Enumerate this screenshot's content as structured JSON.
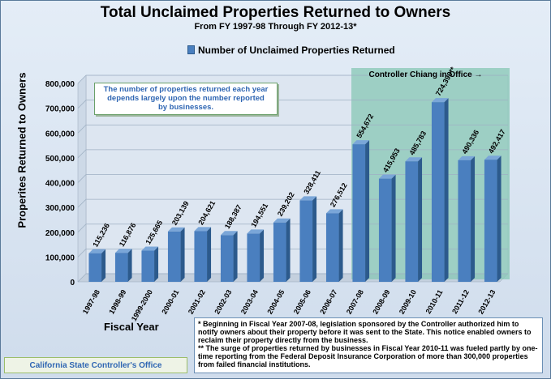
{
  "header": {
    "title": "Total Unclaimed Properties Returned to Owners",
    "subtitle": "From FY 1997-98 Through FY 2012-13*"
  },
  "legend": {
    "label": "Number of Unclaimed Properties Returned"
  },
  "annotations": {
    "note": [
      "The number of properties returned each year",
      "depends largely upon the number reported",
      "by businesses."
    ],
    "office_label": "Controller Chiang in Office →",
    "footnotes": [
      "* Beginning in Fiscal Year 2007-08, legislation sponsored by the Controller authorized him to notify owners about their property before it was sent to the State. This notice enabled owners to reclaim their property directly from the business.",
      "** The surge of properties returned by businesses in Fiscal Year 2010-11 was fueled partly by one-time reporting from the Federal Deposit Insurance Corporation of more than 300,000 properties from failed financial institutions."
    ],
    "source": "California State Controller's Office"
  },
  "colors": {
    "bar": "#4a7fbf",
    "bar_dark": "#2c5a8c",
    "highlight": "#87c7b4",
    "background": "#d8e3f0"
  },
  "chart_data": {
    "type": "bar",
    "title": "Total Unclaimed Properties Returned to Owners",
    "subtitle": "From FY 1997-98 Through FY 2012-13*",
    "xlabel": "Fiscal Year",
    "ylabel": "Properites Returned to Owners",
    "ylim": [
      0,
      800000
    ],
    "yticks": [
      0,
      100000,
      200000,
      300000,
      400000,
      500000,
      600000,
      700000,
      800000
    ],
    "ytick_labels": [
      "0",
      "100,000",
      "200,000",
      "300,000",
      "400,000",
      "500,000",
      "600,000",
      "700,000",
      "800,000"
    ],
    "grid": true,
    "legend_position": "top",
    "highlight_region": {
      "from": "2007-08",
      "to": "2012-13",
      "label": "Controller Chiang in Office →"
    },
    "categories": [
      "1997-98",
      "1998-99",
      "1999-2000",
      "2000-01",
      "2001-02",
      "2002-03",
      "2003-04",
      "2004-05",
      "2005-06",
      "2006-07",
      "2007-08",
      "2008-09",
      "2009-10",
      "2010-11",
      "2011-12",
      "2012-13"
    ],
    "series": [
      {
        "name": "Number of Unclaimed Properties Returned",
        "values": [
          115236,
          116876,
          125665,
          203139,
          204621,
          188387,
          194551,
          239202,
          328411,
          276512,
          554672,
          415953,
          485783,
          724390,
          490336,
          492417
        ],
        "labels": [
          "115,236",
          "116,876",
          "125,665",
          "203,139",
          "204,621",
          "188,387",
          "194,551",
          "239,202",
          "328,411",
          "276,512",
          "554,672",
          "415,953",
          "485,783",
          "724,390**",
          "490,336",
          "492,417"
        ]
      }
    ]
  }
}
